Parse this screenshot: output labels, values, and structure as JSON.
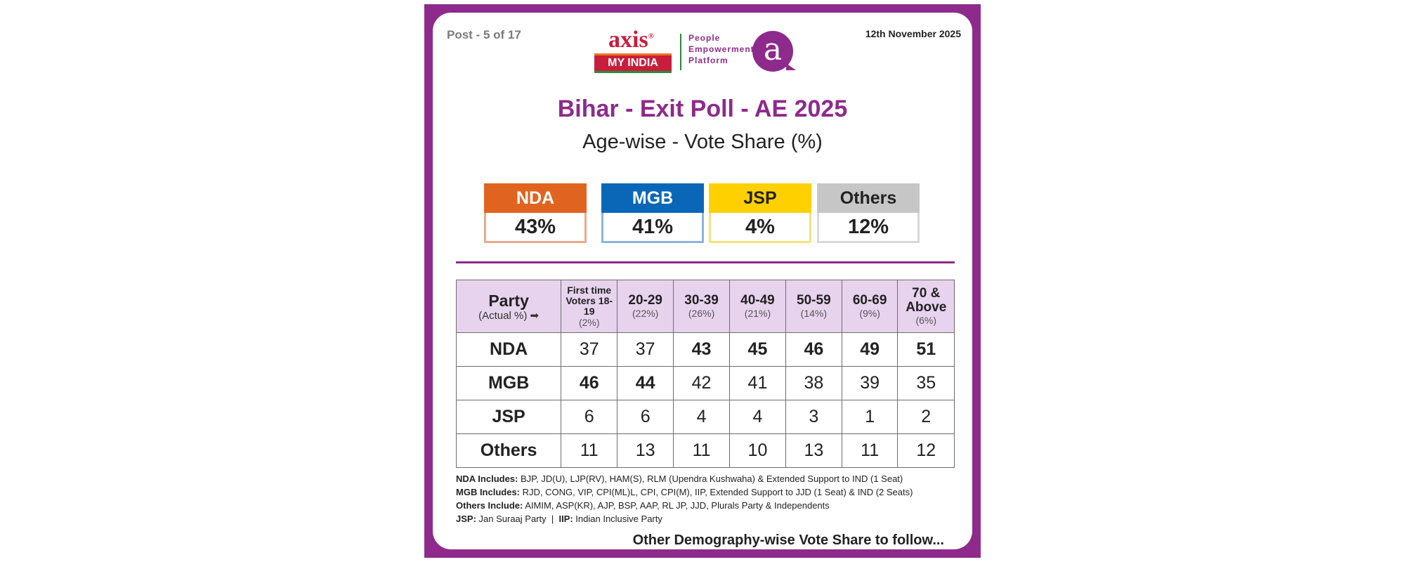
{
  "header": {
    "post": "Post - 5 of 17",
    "date": "12th November 2025",
    "logo_text": "axis",
    "logo_sub": "MY INDIA",
    "tagline": [
      "People",
      "Empowerment",
      "Platform"
    ],
    "badge_letter": "a"
  },
  "title": "Bihar - Exit Poll - AE 2025",
  "subtitle": "Age-wise - Vote Share (%)",
  "summary": [
    {
      "party": "NDA",
      "share": "43%",
      "color": "#e0641f",
      "border": "#e9a98c"
    },
    {
      "party": "MGB",
      "share": "41%",
      "color": "#0a67b8",
      "border": "#8db4dc"
    },
    {
      "party": "JSP",
      "share": "4%",
      "color": "#ffd000",
      "border": "#f5e27a"
    },
    {
      "party": "Others",
      "share": "12%",
      "color": "#c6c6c6",
      "border": "#d8d8d8"
    }
  ],
  "table": {
    "party_header": "Party",
    "party_sub": "(Actual %) ➡",
    "columns": [
      {
        "label": "First time Voters 18-19",
        "pct": "(2%)"
      },
      {
        "label": "20-29",
        "pct": "(22%)"
      },
      {
        "label": "30-39",
        "pct": "(26%)"
      },
      {
        "label": "40-49",
        "pct": "(21%)"
      },
      {
        "label": "50-59",
        "pct": "(14%)"
      },
      {
        "label": "60-69",
        "pct": "(9%)"
      },
      {
        "label": "70 & Above",
        "pct": "(6%)"
      }
    ],
    "rows": [
      {
        "party": "NDA",
        "values": [
          "37",
          "37",
          "43",
          "45",
          "46",
          "49",
          "51"
        ],
        "bold": [
          false,
          false,
          true,
          true,
          true,
          true,
          true
        ]
      },
      {
        "party": "MGB",
        "values": [
          "46",
          "44",
          "42",
          "41",
          "38",
          "39",
          "35"
        ],
        "bold": [
          true,
          true,
          false,
          false,
          false,
          false,
          false
        ]
      },
      {
        "party": "JSP",
        "values": [
          "6",
          "6",
          "4",
          "4",
          "3",
          "1",
          "2"
        ],
        "bold": [
          false,
          false,
          false,
          false,
          false,
          false,
          false
        ]
      },
      {
        "party": "Others",
        "values": [
          "11",
          "13",
          "11",
          "10",
          "13",
          "11",
          "12"
        ],
        "bold": [
          false,
          false,
          false,
          false,
          false,
          false,
          false
        ]
      }
    ]
  },
  "notes": [
    {
      "label": "NDA Includes:",
      "text": " BJP, JD(U), LJP(RV), HAM(S), RLM (Upendra Kushwaha) & Extended Support to IND (1 Seat)"
    },
    {
      "label": "MGB Includes:",
      "text": " RJD, CONG, VIP, CPI(ML)L, CPI, CPI(M), IIP, Extended Support to JJD (1 Seat) & IND (2 Seats)"
    },
    {
      "label": "Others Include:",
      "text": " AIMIM, ASP(KR), AJP, BSP, AAP, RL JP, JJD, Plurals Party & Independents"
    }
  ],
  "abbrev": {
    "jsp_label": "JSP:",
    "jsp_text": " Jan Suraaj Party",
    "sep": "  |  ",
    "iip_label": "IIP:",
    "iip_text": " Indian Inclusive Party"
  },
  "footer": "Other Demography-wise Vote Share to follow..."
}
